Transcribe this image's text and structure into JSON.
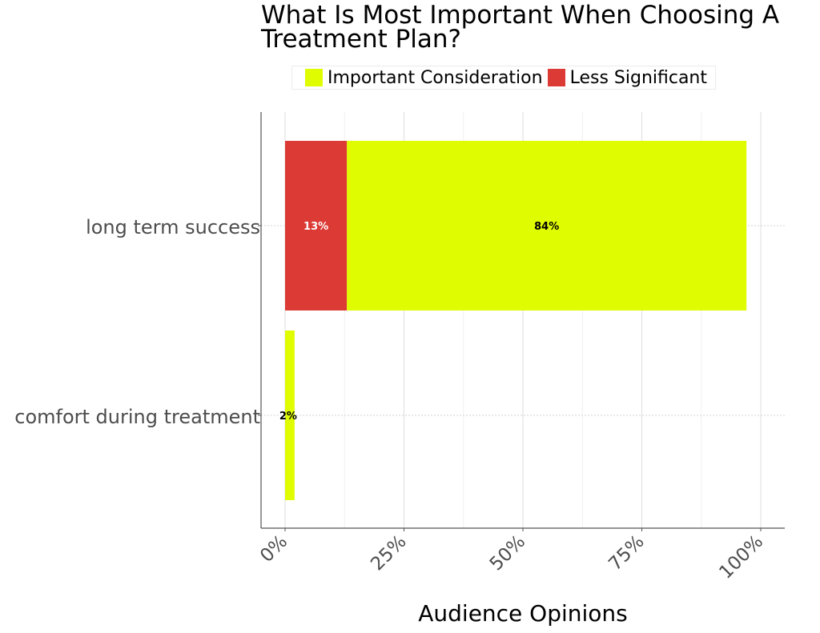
{
  "chart_data": {
    "type": "bar",
    "orientation": "horizontal",
    "stacked": true,
    "title": "What Is Most Important When Choosing A Treatment Plan?",
    "xlabel": "Audience Opinions",
    "ylabel": "",
    "xlim": [
      0,
      100
    ],
    "x_ticks": [
      "0%",
      "25%",
      "50%",
      "75%",
      "100%"
    ],
    "categories": [
      "long term success",
      "comfort during treatment"
    ],
    "series": [
      {
        "name": "Less Significant",
        "values": [
          13,
          0
        ],
        "color": "#dc3a34",
        "label_color": "#ffffff"
      },
      {
        "name": "Important Consideration",
        "values": [
          84,
          2
        ],
        "color": "#e0fc00",
        "label_color": "#000000"
      }
    ],
    "data_labels": [
      {
        "category": "long term success",
        "series": "Less Significant",
        "text": "13%"
      },
      {
        "category": "long term success",
        "series": "Important Consideration",
        "text": "84%"
      },
      {
        "category": "comfort during treatment",
        "series": "Important Consideration",
        "text": "2%"
      }
    ],
    "legend_position": "top",
    "legend_order": [
      "Important Consideration",
      "Less Significant"
    ],
    "grid": true
  }
}
